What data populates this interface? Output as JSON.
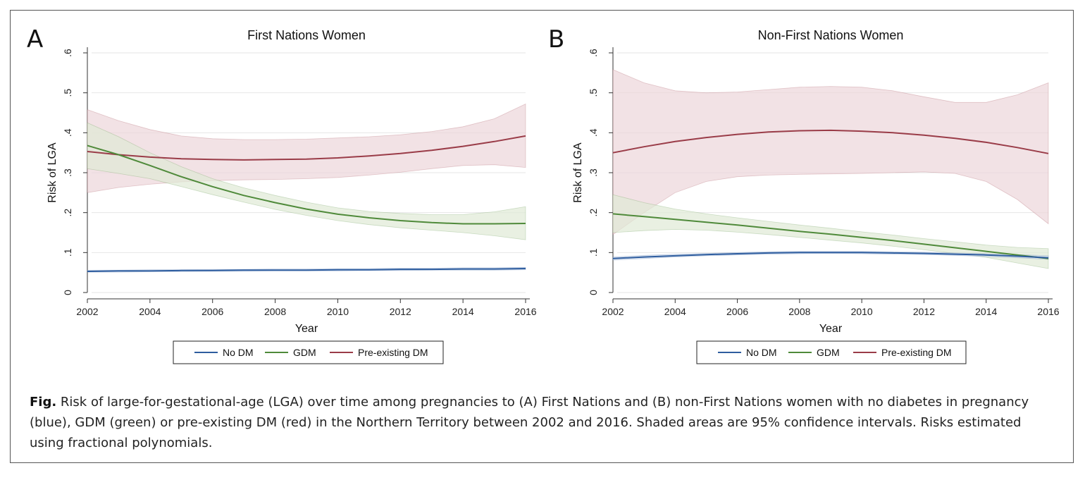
{
  "colors": {
    "no_dm": "#2e5d9f",
    "gdm": "#4f8a3a",
    "pre_dm": "#9a3c48",
    "gdm_band": "#dfe9d6",
    "pre_band": "#ecd6da",
    "grid": "#e6e6e6"
  },
  "chart_data": [
    {
      "type": "line",
      "panel": "A",
      "title": "First Nations Women",
      "xlabel": "Year",
      "ylabel": "Risk of LGA",
      "xlim": [
        2002,
        2016
      ],
      "ylim": [
        0,
        0.6
      ],
      "xticks": [
        "2002",
        "2004",
        "2006",
        "2008",
        "2010",
        "2012",
        "2014",
        "2016"
      ],
      "yticks": [
        "0",
        ".1",
        ".2",
        ".3",
        ".4",
        ".5",
        ".6"
      ],
      "x": [
        2002,
        2003,
        2004,
        2005,
        2006,
        2007,
        2008,
        2009,
        2010,
        2011,
        2012,
        2013,
        2014,
        2015,
        2016
      ],
      "series": [
        {
          "name": "No DM",
          "values": [
            0.053,
            0.054,
            0.054,
            0.055,
            0.055,
            0.056,
            0.056,
            0.056,
            0.057,
            0.057,
            0.058,
            0.058,
            0.059,
            0.059,
            0.06
          ],
          "lower": [
            0.051,
            0.051,
            0.052,
            0.052,
            0.053,
            0.053,
            0.054,
            0.054,
            0.054,
            0.055,
            0.055,
            0.056,
            0.056,
            0.056,
            0.057
          ],
          "upper": [
            0.056,
            0.056,
            0.057,
            0.057,
            0.058,
            0.058,
            0.059,
            0.059,
            0.06,
            0.06,
            0.061,
            0.061,
            0.062,
            0.062,
            0.063
          ]
        },
        {
          "name": "GDM",
          "values": [
            0.368,
            0.345,
            0.318,
            0.29,
            0.265,
            0.243,
            0.225,
            0.209,
            0.196,
            0.187,
            0.18,
            0.175,
            0.172,
            0.172,
            0.173
          ],
          "lower": [
            0.31,
            0.298,
            0.285,
            0.265,
            0.245,
            0.226,
            0.208,
            0.193,
            0.18,
            0.17,
            0.162,
            0.156,
            0.15,
            0.142,
            0.132
          ],
          "upper": [
            0.425,
            0.39,
            0.35,
            0.315,
            0.285,
            0.262,
            0.243,
            0.226,
            0.212,
            0.203,
            0.198,
            0.195,
            0.195,
            0.202,
            0.215
          ]
        },
        {
          "name": "Pre-existing DM",
          "values": [
            0.353,
            0.345,
            0.339,
            0.335,
            0.333,
            0.332,
            0.333,
            0.334,
            0.337,
            0.342,
            0.348,
            0.356,
            0.366,
            0.378,
            0.392
          ],
          "lower": [
            0.25,
            0.263,
            0.271,
            0.277,
            0.28,
            0.282,
            0.283,
            0.285,
            0.288,
            0.294,
            0.301,
            0.31,
            0.318,
            0.32,
            0.313
          ],
          "upper": [
            0.458,
            0.43,
            0.408,
            0.392,
            0.385,
            0.383,
            0.383,
            0.384,
            0.387,
            0.39,
            0.395,
            0.403,
            0.415,
            0.435,
            0.472
          ]
        }
      ],
      "legend": [
        "No DM",
        "GDM",
        "Pre-existing DM"
      ]
    },
    {
      "type": "line",
      "panel": "B",
      "title": "Non-First Nations Women",
      "xlabel": "Year",
      "ylabel": "Risk of LGA",
      "xlim": [
        2002,
        2016
      ],
      "ylim": [
        0,
        0.6
      ],
      "xticks": [
        "2002",
        "2004",
        "2006",
        "2008",
        "2010",
        "2012",
        "2014",
        "2016"
      ],
      "yticks": [
        "0",
        ".1",
        ".2",
        ".3",
        ".4",
        ".5",
        ".6"
      ],
      "x": [
        2002,
        2003,
        2004,
        2005,
        2006,
        2007,
        2008,
        2009,
        2010,
        2011,
        2012,
        2013,
        2014,
        2015,
        2016
      ],
      "series": [
        {
          "name": "No DM",
          "values": [
            0.085,
            0.089,
            0.092,
            0.095,
            0.097,
            0.099,
            0.1,
            0.1,
            0.1,
            0.099,
            0.098,
            0.096,
            0.094,
            0.091,
            0.087
          ],
          "lower": [
            0.081,
            0.085,
            0.089,
            0.092,
            0.094,
            0.096,
            0.097,
            0.098,
            0.097,
            0.096,
            0.095,
            0.093,
            0.09,
            0.087,
            0.083
          ],
          "upper": [
            0.089,
            0.093,
            0.096,
            0.098,
            0.1,
            0.102,
            0.103,
            0.103,
            0.103,
            0.102,
            0.101,
            0.099,
            0.097,
            0.095,
            0.092
          ]
        },
        {
          "name": "GDM",
          "values": [
            0.197,
            0.19,
            0.183,
            0.176,
            0.169,
            0.161,
            0.153,
            0.146,
            0.138,
            0.13,
            0.121,
            0.112,
            0.103,
            0.094,
            0.085
          ],
          "lower": [
            0.15,
            0.155,
            0.158,
            0.156,
            0.151,
            0.145,
            0.138,
            0.131,
            0.124,
            0.116,
            0.107,
            0.098,
            0.088,
            0.074,
            0.06
          ],
          "upper": [
            0.245,
            0.225,
            0.209,
            0.197,
            0.187,
            0.178,
            0.169,
            0.161,
            0.152,
            0.144,
            0.135,
            0.127,
            0.119,
            0.113,
            0.11
          ]
        },
        {
          "name": "Pre-existing DM",
          "values": [
            0.35,
            0.365,
            0.378,
            0.388,
            0.396,
            0.402,
            0.405,
            0.406,
            0.404,
            0.4,
            0.394,
            0.386,
            0.376,
            0.363,
            0.348
          ],
          "lower": [
            0.145,
            0.2,
            0.25,
            0.278,
            0.29,
            0.294,
            0.296,
            0.297,
            0.298,
            0.3,
            0.302,
            0.298,
            0.278,
            0.233,
            0.172
          ],
          "upper": [
            0.558,
            0.525,
            0.505,
            0.5,
            0.502,
            0.508,
            0.514,
            0.516,
            0.514,
            0.505,
            0.49,
            0.476,
            0.476,
            0.495,
            0.525
          ]
        }
      ],
      "legend": [
        "No DM",
        "GDM",
        "Pre-existing DM"
      ]
    }
  ],
  "caption": {
    "lead": "Fig.",
    "text": " Risk of large-for-gestational-age (LGA) over time among pregnancies to (A) First Nations and (B) non-First Nations women with no diabetes in pregnancy (blue), GDM (green) or pre-existing DM (red) in the Northern Territory between 2002 and 2016. Shaded areas are 95% confidence intervals. Risks estimated using fractional polynomials."
  }
}
